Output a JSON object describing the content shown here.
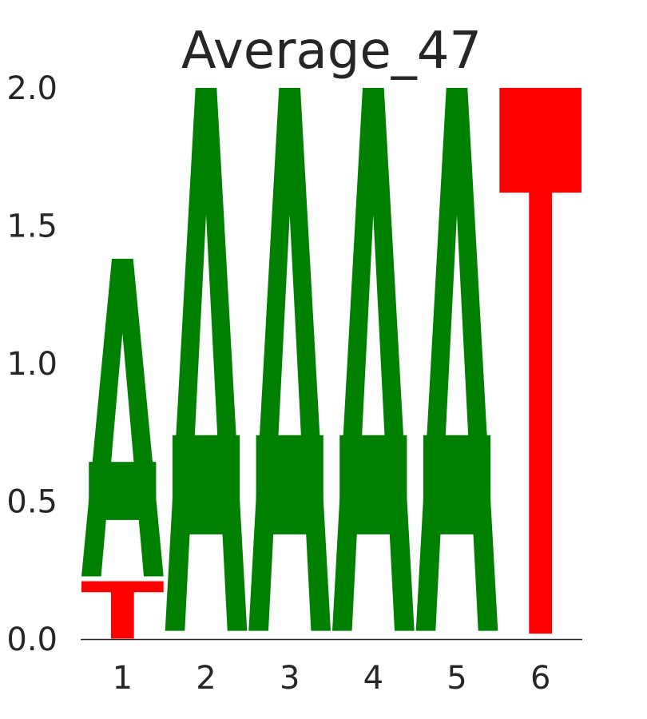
{
  "chart_data": {
    "type": "sequence-logo",
    "title": "Average_47",
    "xlabel": "",
    "ylabel": "",
    "ylim": [
      0,
      2.0
    ],
    "yticks": [
      "0.0",
      "0.5",
      "1.0",
      "1.5",
      "2.0"
    ],
    "categories": [
      "1",
      "2",
      "3",
      "4",
      "5",
      "6"
    ],
    "grid": false,
    "legend": "none",
    "colors": {
      "A": "#008000",
      "T": "#ff0000"
    },
    "positions": [
      {
        "position": "1",
        "letters": [
          {
            "letter": "T",
            "height": 0.21
          },
          {
            "letter": "A",
            "height": 1.17
          }
        ]
      },
      {
        "position": "2",
        "letters": [
          {
            "letter": "A",
            "height": 2.0
          }
        ]
      },
      {
        "position": "3",
        "letters": [
          {
            "letter": "A",
            "height": 2.0
          }
        ]
      },
      {
        "position": "4",
        "letters": [
          {
            "letter": "A",
            "height": 2.0
          }
        ]
      },
      {
        "position": "5",
        "letters": [
          {
            "letter": "A",
            "height": 2.0
          }
        ]
      },
      {
        "position": "6",
        "letters": [
          {
            "letter": "T",
            "height": 2.0
          }
        ]
      }
    ]
  }
}
